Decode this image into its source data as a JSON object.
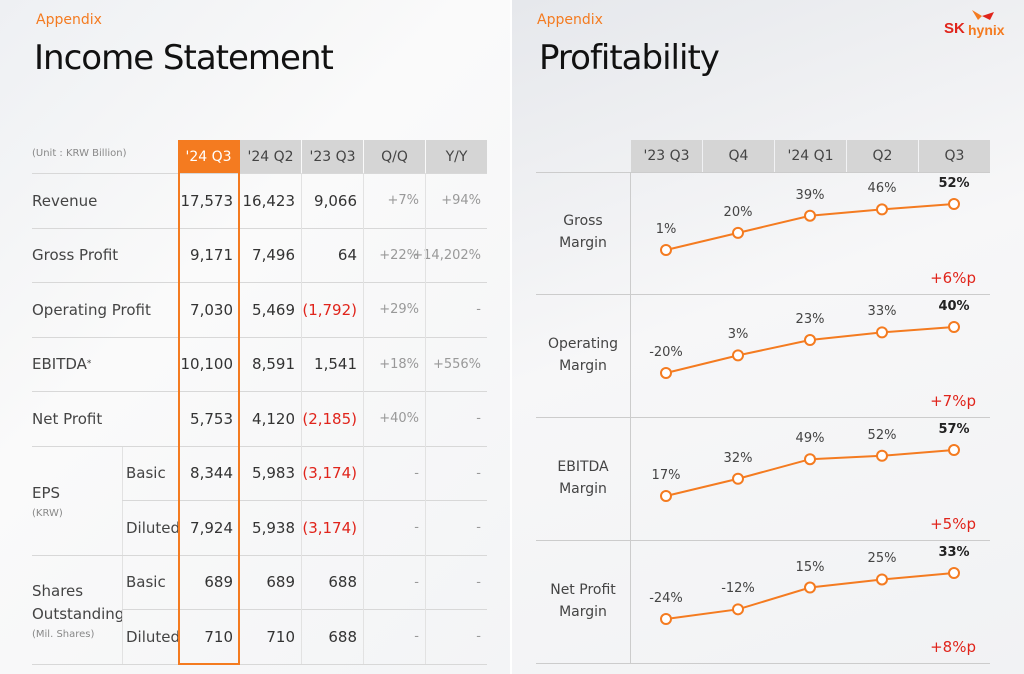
{
  "left": {
    "section": "Appendix",
    "title": "Income Statement",
    "unit": "(Unit : KRW Billion)",
    "columns": [
      "'24 Q3",
      "'24 Q2",
      "'23 Q3",
      "Q/Q",
      "Y/Y"
    ],
    "rows": [
      {
        "label": "Revenue",
        "values": [
          "17,573",
          "16,423",
          "9,066",
          "+7%",
          "+94%"
        ]
      },
      {
        "label": "Gross Profit",
        "values": [
          "9,171",
          "7,496",
          "64",
          "+22%",
          "+14,202%"
        ]
      },
      {
        "label": "Operating Profit",
        "values": [
          "7,030",
          "5,469",
          "(1,792)",
          "+29%",
          "-"
        ]
      },
      {
        "label": "EBITDA",
        "sup": "*",
        "values": [
          "10,100",
          "8,591",
          "1,541",
          "+18%",
          "+556%"
        ]
      },
      {
        "label": "Net Profit",
        "values": [
          "5,753",
          "4,120",
          "(2,185)",
          "+40%",
          "-"
        ]
      }
    ],
    "eps": {
      "label": "EPS",
      "unit": "(KRW)",
      "rows": [
        {
          "label": "Basic",
          "values": [
            "8,344",
            "5,983",
            "(3,174)",
            "-",
            "-"
          ]
        },
        {
          "label": "Diluted",
          "values": [
            "7,924",
            "5,938",
            "(3,174)",
            "-",
            "-"
          ]
        }
      ]
    },
    "shares": {
      "label": "Shares Outstanding",
      "unit": "(Mil. Shares)",
      "rows": [
        {
          "label": "Basic",
          "values": [
            "689",
            "689",
            "688",
            "-",
            "-"
          ]
        },
        {
          "label": "Diluted",
          "values": [
            "710",
            "710",
            "688",
            "-",
            "-"
          ]
        }
      ]
    }
  },
  "right": {
    "section": "Appendix",
    "title": "Profitability",
    "logo": "SK hynix",
    "accent": "#f47b20",
    "delta_color": "#e0241b",
    "chart_data": {
      "type": "line",
      "categories": [
        "'23 Q3",
        "Q4",
        "'24 Q1",
        "Q2",
        "Q3"
      ],
      "series": [
        {
          "name": "Gross Margin",
          "values": [
            1,
            20,
            39,
            46,
            52
          ],
          "labels": [
            "1%",
            "20%",
            "39%",
            "46%",
            "52%"
          ],
          "delta": "+6%p"
        },
        {
          "name": "Operating Margin",
          "values": [
            -20,
            3,
            23,
            33,
            40
          ],
          "labels": [
            "-20%",
            "3%",
            "23%",
            "33%",
            "40%"
          ],
          "delta": "+7%p"
        },
        {
          "name": "EBITDA Margin",
          "values": [
            17,
            32,
            49,
            52,
            57
          ],
          "labels": [
            "17%",
            "32%",
            "49%",
            "52%",
            "57%"
          ],
          "delta": "+5%p"
        },
        {
          "name": "Net Profit Margin",
          "values": [
            -24,
            -12,
            15,
            25,
            33
          ],
          "labels": [
            "-24%",
            "-12%",
            "15%",
            "25%",
            "33%"
          ],
          "delta": "+8%p"
        }
      ]
    }
  }
}
